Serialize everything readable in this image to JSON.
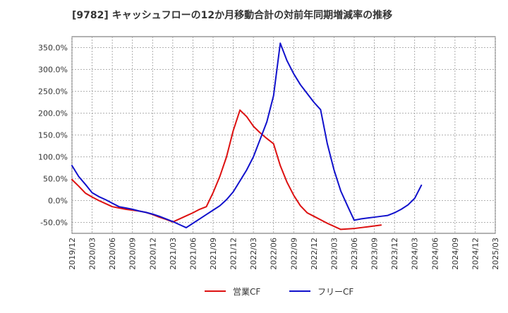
{
  "chart_data": {
    "type": "line",
    "title": "[9782]  キャッシュフローの12か月移動合計の対前年同期増減率の推移",
    "xlabel": "",
    "ylabel": "",
    "ylim": [
      -75,
      375
    ],
    "y_ticks": [
      -50,
      0,
      50,
      100,
      150,
      200,
      250,
      300,
      350
    ],
    "y_tick_labels": [
      "-50.0%",
      "0.0%",
      "50.0%",
      "100.0%",
      "150.0%",
      "200.0%",
      "250.0%",
      "300.0%",
      "350.0%"
    ],
    "x_tick_labels": [
      "2019/12",
      "2020/03",
      "2020/06",
      "2020/09",
      "2020/12",
      "2021/03",
      "2021/06",
      "2021/09",
      "2021/12",
      "2022/03",
      "2022/06",
      "2022/09",
      "2022/12",
      "2023/03",
      "2023/06",
      "2023/09",
      "2023/12",
      "2024/03",
      "2024/06",
      "2024/09",
      "2024/12",
      "2025/03"
    ],
    "grid": true,
    "legend_position": "bottom",
    "series": [
      {
        "name": "営業CF",
        "color": "#dd1111",
        "points": [
          [
            0,
            48
          ],
          [
            1,
            33
          ],
          [
            2,
            17
          ],
          [
            3,
            8
          ],
          [
            4,
            0
          ],
          [
            5,
            -7
          ],
          [
            6,
            -14
          ],
          [
            7,
            -17
          ],
          [
            8,
            -20
          ],
          [
            9,
            -22
          ],
          [
            10,
            -24
          ],
          [
            11,
            -27
          ],
          [
            12,
            -32
          ],
          [
            13,
            -38
          ],
          [
            14,
            -43
          ],
          [
            15,
            -49
          ],
          [
            16,
            -42
          ],
          [
            17,
            -35
          ],
          [
            18,
            -28
          ],
          [
            19,
            -20
          ],
          [
            20,
            -14
          ],
          [
            21,
            18
          ],
          [
            22,
            55
          ],
          [
            23,
            100
          ],
          [
            24,
            160
          ],
          [
            25,
            207
          ],
          [
            26,
            192
          ],
          [
            27,
            170
          ],
          [
            28,
            155
          ],
          [
            29,
            142
          ],
          [
            30,
            130
          ],
          [
            31,
            80
          ],
          [
            32,
            42
          ],
          [
            33,
            12
          ],
          [
            34,
            -12
          ],
          [
            35,
            -28
          ],
          [
            36,
            -36
          ],
          [
            37,
            -44
          ],
          [
            38,
            -52
          ],
          [
            39,
            -59
          ],
          [
            40,
            -66
          ],
          [
            41,
            -65
          ],
          [
            42,
            -64
          ],
          [
            43,
            -62
          ],
          [
            44,
            -60
          ],
          [
            45,
            -58
          ],
          [
            46,
            -56
          ]
        ]
      },
      {
        "name": "フリーCF",
        "color": "#1111cc",
        "points": [
          [
            0,
            80
          ],
          [
            1,
            55
          ],
          [
            2,
            37
          ],
          [
            3,
            18
          ],
          [
            4,
            9
          ],
          [
            5,
            2
          ],
          [
            6,
            -6
          ],
          [
            7,
            -14
          ],
          [
            8,
            -17
          ],
          [
            9,
            -20
          ],
          [
            10,
            -24
          ],
          [
            11,
            -27
          ],
          [
            12,
            -31
          ],
          [
            13,
            -36
          ],
          [
            14,
            -42
          ],
          [
            15,
            -48
          ],
          [
            16,
            -55
          ],
          [
            17,
            -62
          ],
          [
            18,
            -52
          ],
          [
            19,
            -42
          ],
          [
            20,
            -32
          ],
          [
            21,
            -22
          ],
          [
            22,
            -12
          ],
          [
            23,
            2
          ],
          [
            24,
            20
          ],
          [
            25,
            45
          ],
          [
            26,
            70
          ],
          [
            27,
            100
          ],
          [
            28,
            140
          ],
          [
            29,
            180
          ],
          [
            30,
            240
          ],
          [
            31,
            360
          ],
          [
            32,
            320
          ],
          [
            33,
            290
          ],
          [
            34,
            265
          ],
          [
            35,
            245
          ],
          [
            36,
            225
          ],
          [
            37,
            208
          ],
          [
            38,
            130
          ],
          [
            39,
            70
          ],
          [
            40,
            22
          ],
          [
            41,
            -12
          ],
          [
            42,
            -45
          ],
          [
            43,
            -42
          ],
          [
            44,
            -40
          ],
          [
            45,
            -38
          ],
          [
            46,
            -36
          ],
          [
            47,
            -34
          ],
          [
            48,
            -28
          ],
          [
            49,
            -20
          ],
          [
            50,
            -10
          ],
          [
            51,
            5
          ],
          [
            52,
            35
          ]
        ]
      }
    ],
    "x_domain": [
      0,
      63
    ]
  }
}
